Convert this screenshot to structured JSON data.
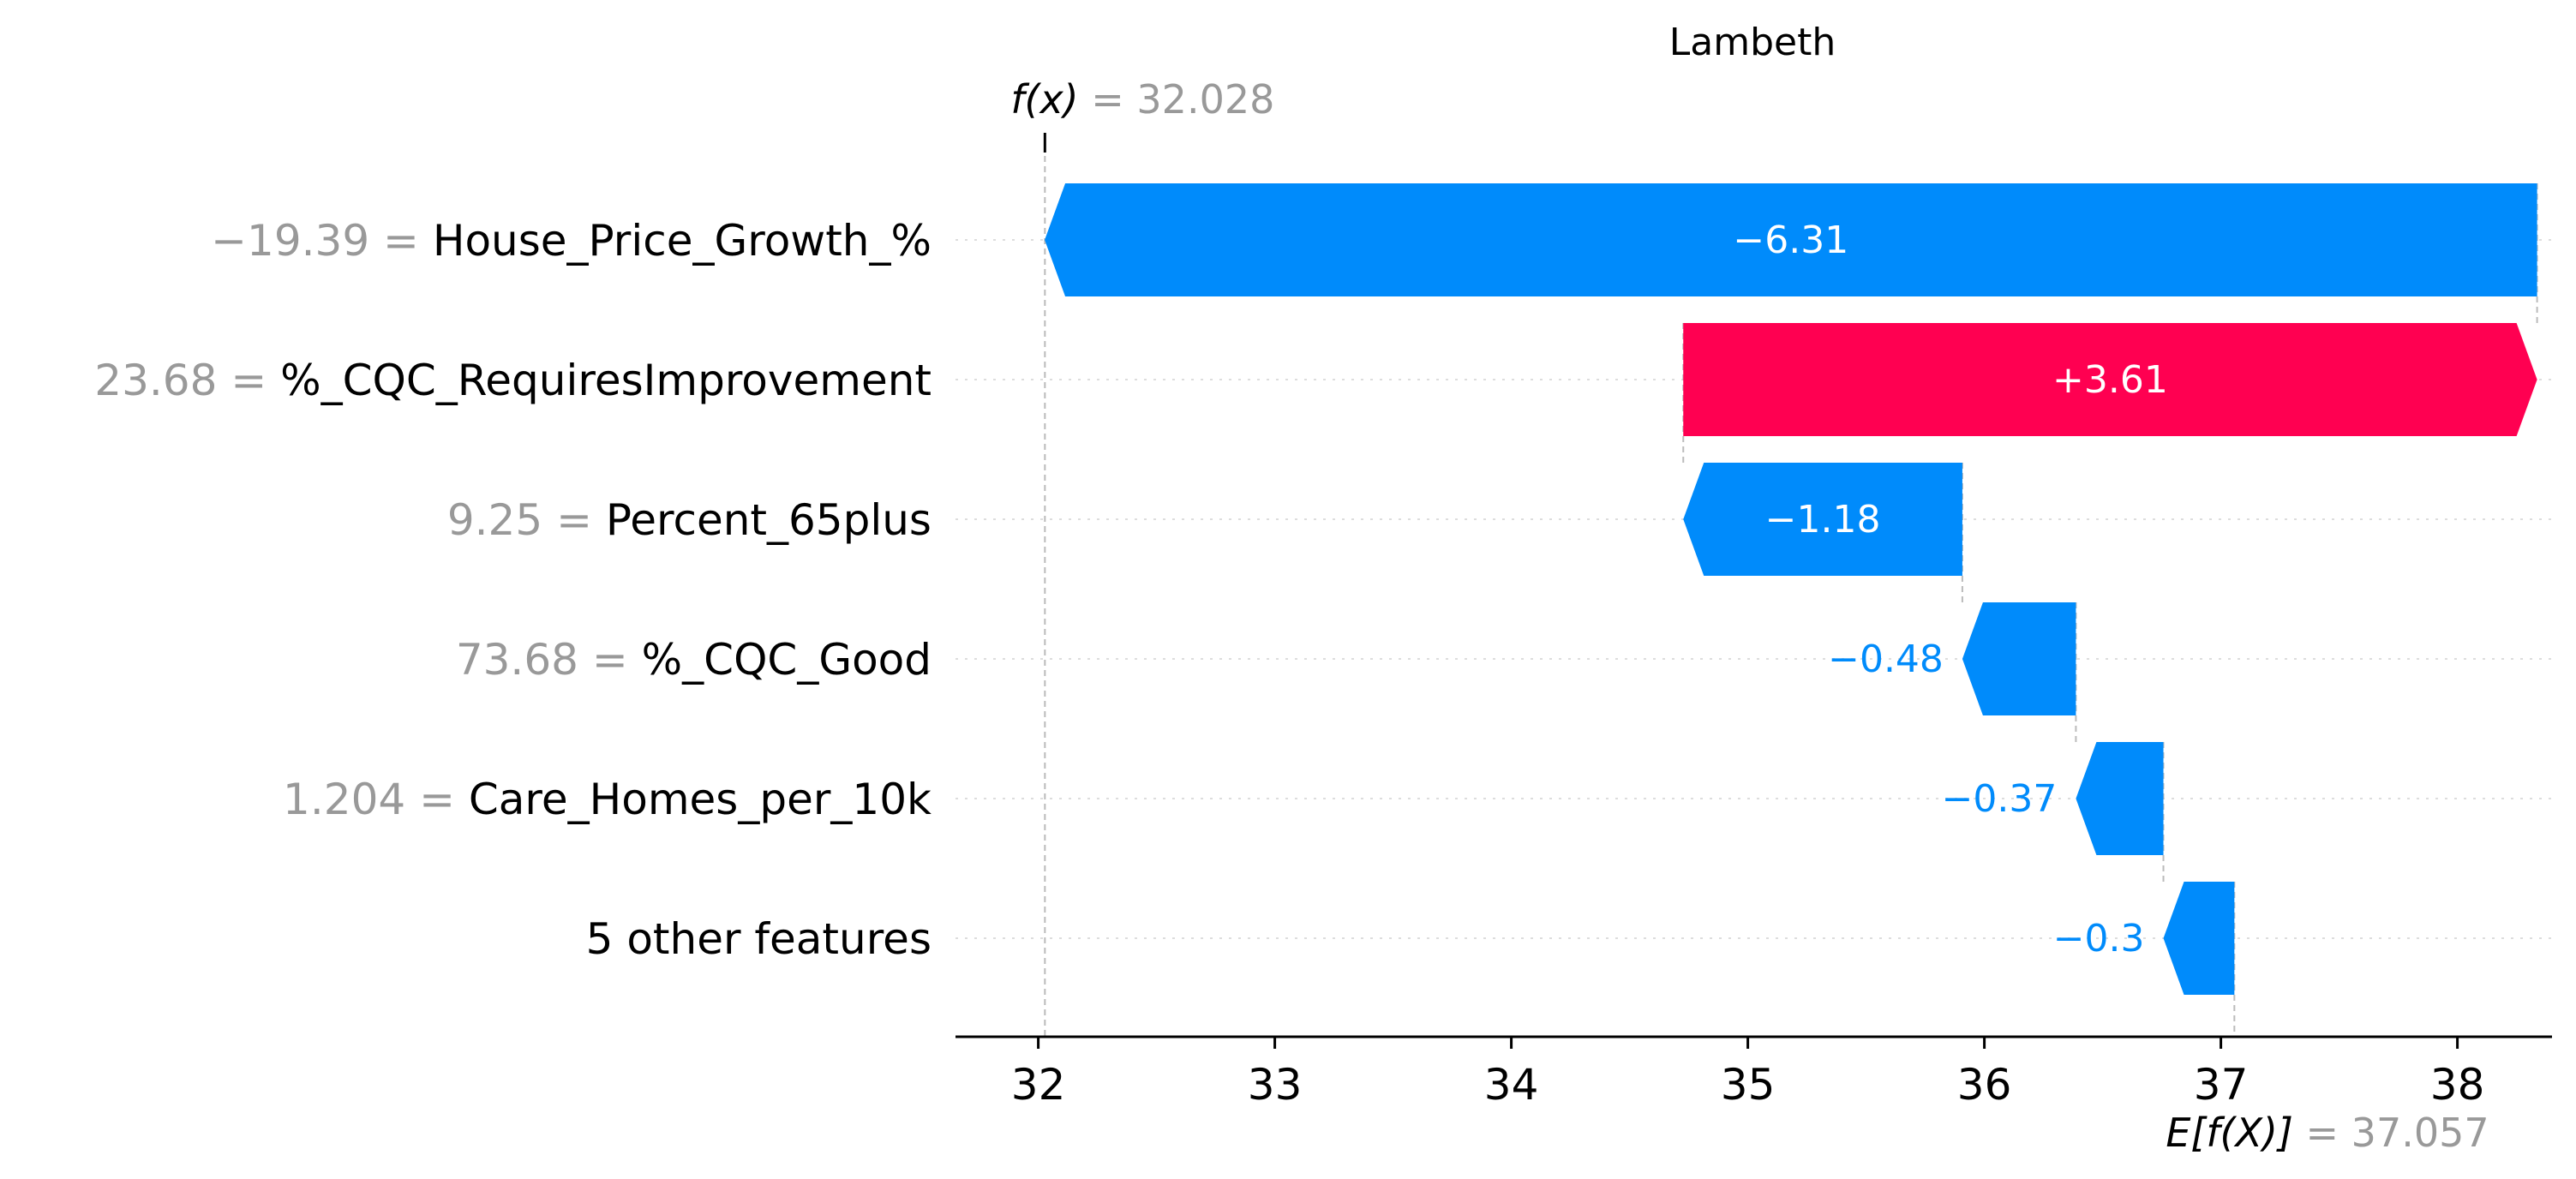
{
  "chart_data": {
    "type": "waterfall",
    "title": "Lambeth",
    "fx": {
      "name": "f(x)",
      "value": 32.028,
      "label": "= 32.028"
    },
    "base": {
      "name": "E[f(X)]",
      "value": 37.057,
      "label": "= 37.057"
    },
    "xlim": [
      31.65,
      38.4
    ],
    "xticks": [
      32,
      33,
      34,
      35,
      36,
      37,
      38
    ],
    "features": [
      {
        "value_text": "−19.39 =",
        "name": "House_Price_Growth_%",
        "contribution": -6.31,
        "label": "−6.31",
        "label_inside": true
      },
      {
        "value_text": "23.68 =",
        "name": "%_CQC_RequiresImprovement",
        "contribution": 3.61,
        "label": "+3.61",
        "label_inside": true
      },
      {
        "value_text": "9.25 =",
        "name": "Percent_65plus",
        "contribution": -1.18,
        "label": "−1.18",
        "label_inside": true
      },
      {
        "value_text": "73.68 =",
        "name": "%_CQC_Good",
        "contribution": -0.48,
        "label": "−0.48",
        "label_inside": false
      },
      {
        "value_text": "1.204 =",
        "name": "Care_Homes_per_10k",
        "contribution": -0.37,
        "label": "−0.37",
        "label_inside": false
      },
      {
        "value_text": "",
        "name": "5 other features",
        "contribution": -0.3,
        "label": "−0.3",
        "label_inside": false
      }
    ],
    "colors": {
      "positive": "#ff0051",
      "negative": "#008bfb",
      "axis": "#000000",
      "guide": "#bbbbbb"
    }
  }
}
